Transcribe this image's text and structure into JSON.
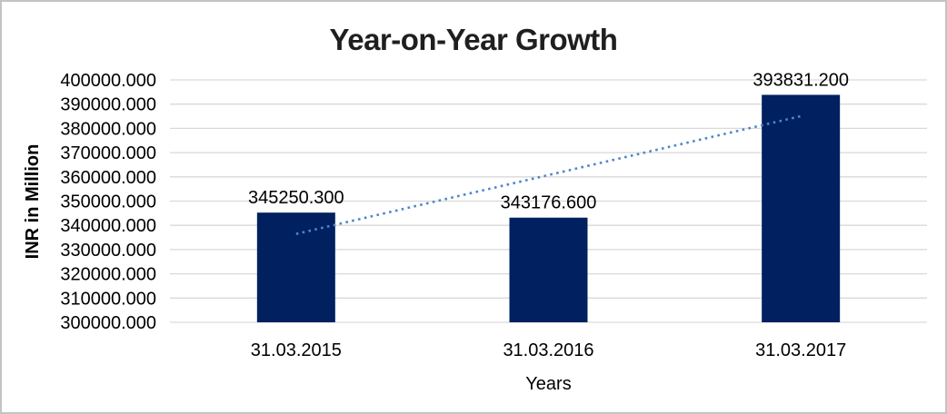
{
  "chart_data": {
    "type": "bar",
    "title": "Year-on-Year Growth",
    "xlabel": "Years",
    "ylabel": "INR in Million",
    "categories": [
      "31.03.2015",
      "31.03.2016",
      "31.03.2017"
    ],
    "values": [
      345250.3,
      343176.6,
      393831.2
    ],
    "data_labels": [
      "345250.300",
      "343176.600",
      "393831.200"
    ],
    "y_ticks": [
      "400000.000",
      "390000.000",
      "380000.000",
      "370000.000",
      "360000.000",
      "350000.000",
      "340000.000",
      "330000.000",
      "320000.000",
      "310000.000",
      "300000.000"
    ],
    "ylim": [
      300000,
      400000
    ],
    "grid": true,
    "legend": false,
    "bar_color": "#002060",
    "grid_color": "#d9d9d9",
    "trendline": {
      "style": "dotted",
      "color": "#4f86c9",
      "start_value": 336460,
      "end_value": 385040
    }
  }
}
